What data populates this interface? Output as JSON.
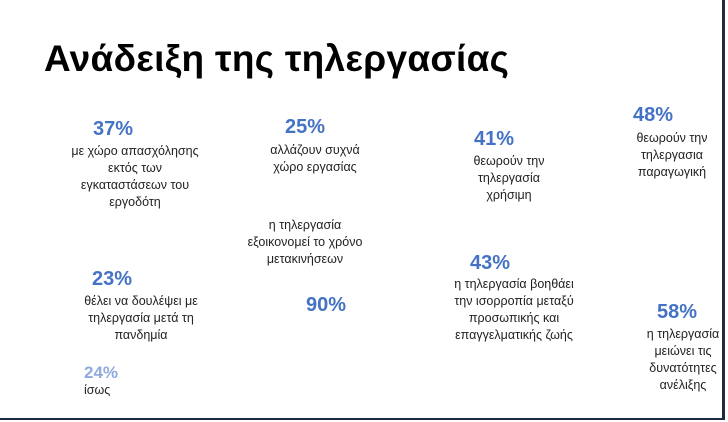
{
  "title": "Ανάδειξη της τηλεργασίας",
  "colors": {
    "primary": "#4472c4",
    "secondary": "#b4c7e7",
    "text": "#222222"
  },
  "chart_data": [
    {
      "type": "pie",
      "values": [
        37
      ],
      "label": "37%",
      "description": "με χώρο απασχόλησης εκτός των εγκαταστάσεων του εργοδότη"
    },
    {
      "type": "pie",
      "values": [
        25
      ],
      "label": "25%",
      "description": "αλλάζουν συχνά χώρο εργασίας"
    },
    {
      "type": "pie",
      "values": [
        41
      ],
      "label": "41%",
      "description": "θεωρούν την τηλεργασία χρήσιμη"
    },
    {
      "type": "pie",
      "values": [
        48
      ],
      "label": "48%",
      "description": "θεωρούν την τηλεργασια παραγωγική"
    },
    {
      "type": "pie",
      "values": [
        23,
        24
      ],
      "labels": [
        "23%",
        "24%"
      ],
      "description": "θέλει να δουλέψει με τηλεργασία μετά τη πανδημία",
      "secondary_description": "ίσως"
    },
    {
      "type": "pie",
      "values": [
        90
      ],
      "label": "90%",
      "description": "η τηλεργασία εξοικονομεί το χρόνο μετακινήσεων"
    },
    {
      "type": "pie",
      "values": [
        43
      ],
      "label": "43%",
      "description": "η τηλεργασία βοηθάει την ισορροπία μεταξύ προσωπικής και επαγγελματικής ζωής"
    },
    {
      "type": "pie",
      "values": [
        58
      ],
      "label": "58%",
      "description": "η τηλεργασία μειώνει τις δυνατότητες ανέλιξης"
    }
  ]
}
